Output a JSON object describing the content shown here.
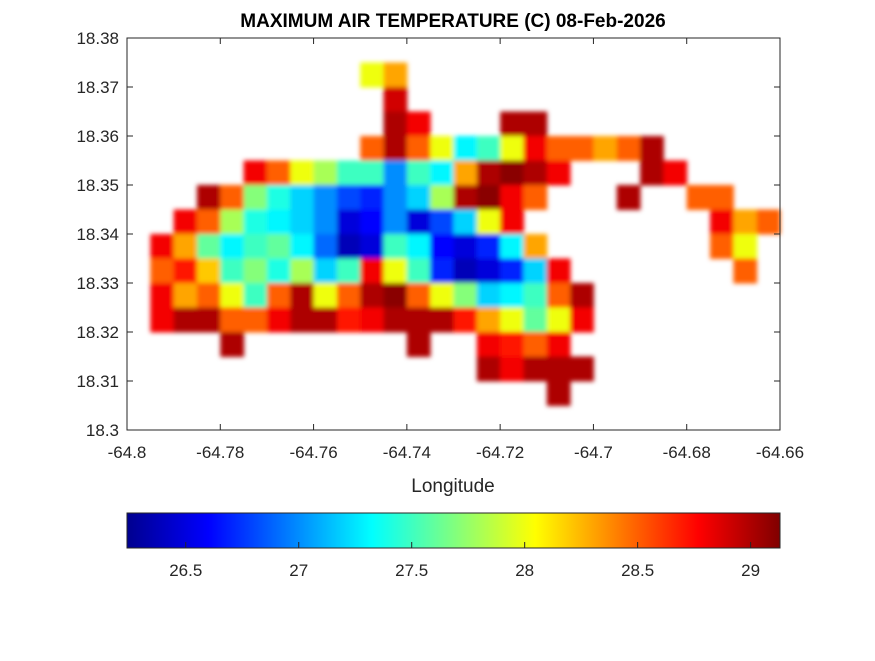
{
  "chart_data": {
    "type": "heatmap",
    "title": "MAXIMUM AIR TEMPERATURE (C) 08-Feb-2026",
    "xlabel": "Longitude",
    "ylabel": "",
    "xlim": [
      -64.8,
      -64.66
    ],
    "ylim": [
      18.3,
      18.38
    ],
    "xticks": [
      -64.8,
      -64.78,
      -64.76,
      -64.74,
      -64.72,
      -64.7,
      -64.68,
      -64.66
    ],
    "xtick_labels": [
      "-64.8",
      "-64.78",
      "-64.76",
      "-64.74",
      "-64.72",
      "-64.7",
      "-64.68",
      "-64.66"
    ],
    "yticks": [
      18.3,
      18.31,
      18.32,
      18.33,
      18.34,
      18.35,
      18.36,
      18.37,
      18.38
    ],
    "ytick_labels": [
      "18.3",
      "18.31",
      "18.32",
      "18.33",
      "18.34",
      "18.35",
      "18.36",
      "18.37",
      "18.38"
    ],
    "grid": false,
    "colormap": "jet",
    "colorbar": {
      "location": "bottom",
      "clim": [
        26.24,
        29.13
      ],
      "ticks": [
        26.5,
        27,
        27.5,
        28,
        28.5,
        29
      ],
      "tick_labels": [
        "26.5",
        "27",
        "27.5",
        "28",
        "28.5",
        "29"
      ]
    },
    "grid_cell_deg": 0.005,
    "grid_lon_start": -64.8,
    "grid_lat_top": 18.38,
    "values_rows_north_to_south": [
      [
        null,
        null,
        null,
        null,
        null,
        null,
        null,
        null,
        null,
        null,
        null,
        null,
        null,
        null,
        null,
        null,
        null,
        null,
        null,
        null,
        null,
        null,
        null,
        null,
        null,
        null,
        null,
        null
      ],
      [
        null,
        null,
        null,
        null,
        null,
        null,
        null,
        null,
        null,
        null,
        28,
        28.3,
        null,
        null,
        null,
        null,
        null,
        null,
        null,
        null,
        null,
        null,
        null,
        null,
        null,
        null,
        null,
        null
      ],
      [
        null,
        null,
        null,
        null,
        null,
        null,
        null,
        null,
        null,
        null,
        null,
        28.9,
        null,
        null,
        null,
        null,
        null,
        null,
        null,
        null,
        null,
        null,
        null,
        null,
        null,
        null,
        null,
        null
      ],
      [
        null,
        null,
        null,
        null,
        null,
        null,
        null,
        null,
        null,
        null,
        null,
        29,
        28.8,
        null,
        null,
        null,
        29,
        29,
        null,
        null,
        null,
        null,
        null,
        null,
        null,
        null,
        null,
        null
      ],
      [
        null,
        null,
        null,
        null,
        null,
        null,
        null,
        null,
        null,
        null,
        28.5,
        29,
        28.5,
        28,
        27.3,
        27.5,
        28,
        28.8,
        28.5,
        28.5,
        28.3,
        28.5,
        29,
        null,
        null,
        null,
        null,
        null
      ],
      [
        null,
        null,
        null,
        null,
        null,
        28.8,
        28.5,
        28,
        27.8,
        27.5,
        27.5,
        27,
        27.5,
        27.3,
        28.3,
        29,
        29.1,
        29,
        28.8,
        null,
        null,
        null,
        29,
        28.8,
        null,
        null,
        null,
        null
      ],
      [
        null,
        null,
        null,
        29,
        28.5,
        27.7,
        27.4,
        27.2,
        27,
        26.8,
        26.7,
        27,
        27.2,
        27.8,
        29,
        29.1,
        28.8,
        28.5,
        null,
        null,
        null,
        29,
        null,
        null,
        28.5,
        28.5,
        null,
        null
      ],
      [
        null,
        null,
        28.8,
        28.5,
        27.8,
        27.4,
        27.3,
        27.2,
        27,
        26.5,
        26.6,
        27,
        26.5,
        26.8,
        27.2,
        28,
        28.8,
        null,
        null,
        null,
        null,
        null,
        null,
        null,
        null,
        28.8,
        28.3,
        28.5
      ],
      [
        null,
        28.8,
        28.3,
        27.6,
        27.3,
        27.5,
        27.6,
        27.3,
        26.9,
        26.4,
        26.5,
        27.5,
        27.3,
        26.6,
        26.5,
        26.7,
        27.3,
        28.3,
        null,
        null,
        null,
        null,
        null,
        null,
        null,
        28.5,
        28,
        null
      ],
      [
        null,
        28.5,
        28.7,
        28.2,
        27.5,
        27.7,
        27.4,
        27.8,
        27.2,
        27.5,
        28.8,
        28,
        27.5,
        26.7,
        26.4,
        26.5,
        26.7,
        27.2,
        28.8,
        null,
        null,
        null,
        null,
        null,
        null,
        null,
        28.5,
        null
      ],
      [
        null,
        28.8,
        28.3,
        28.5,
        28,
        27.5,
        28.5,
        29,
        28,
        28.5,
        29,
        29.1,
        28.5,
        28,
        27.7,
        27.2,
        27.3,
        27.5,
        28.5,
        29,
        null,
        null,
        null,
        null,
        null,
        null,
        null,
        null
      ],
      [
        null,
        28.8,
        29,
        29,
        28.5,
        28.5,
        28.8,
        29,
        29,
        28.7,
        28.8,
        29,
        29,
        29,
        28.7,
        28.3,
        28,
        27.6,
        28,
        28.8,
        null,
        null,
        null,
        null,
        null,
        null,
        null,
        null
      ],
      [
        null,
        null,
        null,
        null,
        29,
        null,
        null,
        null,
        null,
        null,
        null,
        null,
        29,
        null,
        null,
        28.8,
        28.7,
        28.5,
        28.8,
        null,
        null,
        null,
        null,
        null,
        null,
        null,
        null,
        null
      ],
      [
        null,
        null,
        null,
        null,
        null,
        null,
        null,
        null,
        null,
        null,
        null,
        null,
        null,
        null,
        null,
        29,
        28.8,
        29,
        29,
        29,
        null,
        null,
        null,
        null,
        null,
        null,
        null,
        null
      ],
      [
        null,
        null,
        null,
        null,
        null,
        null,
        null,
        null,
        null,
        null,
        null,
        null,
        null,
        null,
        null,
        null,
        null,
        null,
        29,
        null,
        null,
        null,
        null,
        null,
        null,
        null,
        null,
        null
      ],
      [
        null,
        null,
        null,
        null,
        null,
        null,
        null,
        null,
        null,
        null,
        null,
        null,
        null,
        null,
        null,
        null,
        null,
        null,
        null,
        null,
        null,
        null,
        null,
        null,
        null,
        null,
        null,
        null
      ]
    ]
  }
}
